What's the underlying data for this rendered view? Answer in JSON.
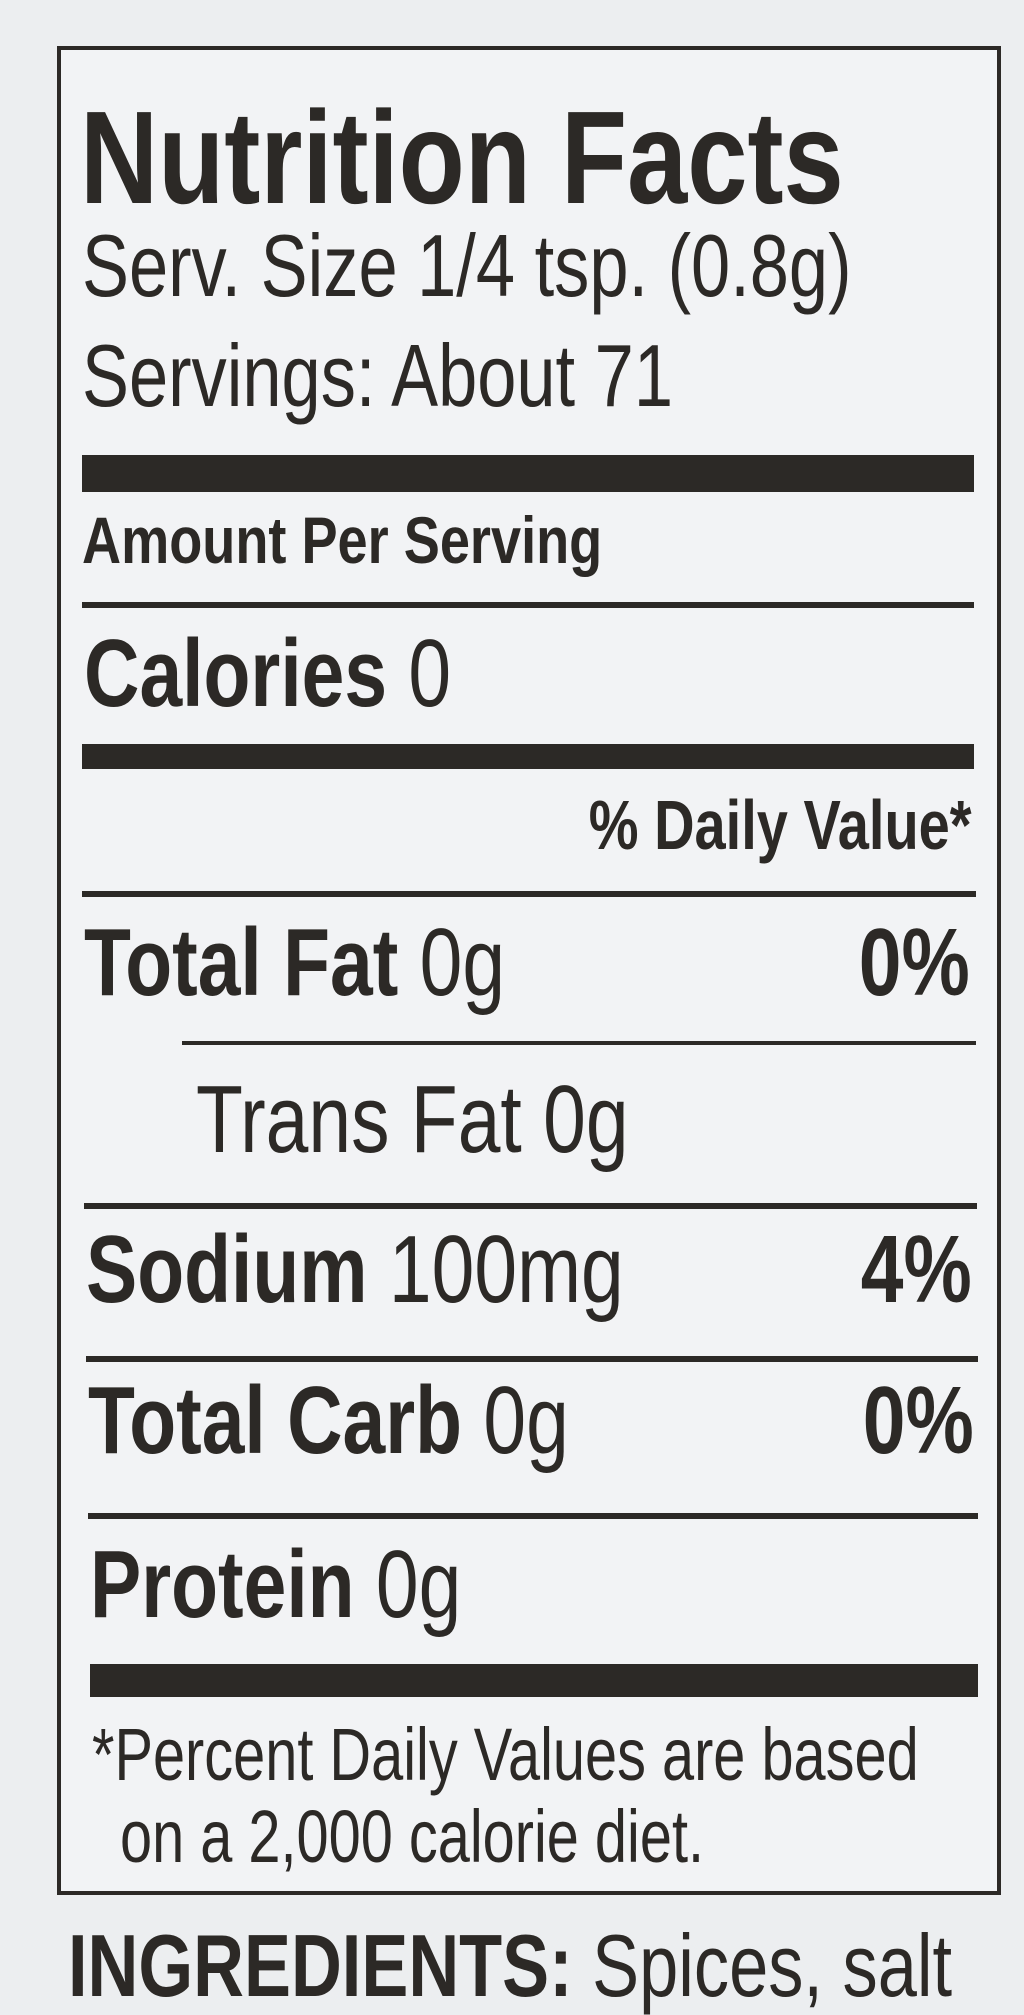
{
  "label": {
    "title": "Nutrition Facts",
    "serving_size": "Serv. Size 1/4 tsp. (0.8g)",
    "servings": "Servings: About 71",
    "amount_per_serving": "Amount Per Serving",
    "calories_label": "Calories",
    "calories_value": "0",
    "daily_value_header": "% Daily Value*",
    "rows": [
      {
        "name": "Total Fat",
        "amount": "0g",
        "dv": "0%"
      },
      {
        "name": "Trans Fat",
        "amount": "0g",
        "dv": ""
      },
      {
        "name": "Sodium",
        "amount": "100mg",
        "dv": "4%"
      },
      {
        "name": "Total Carb",
        "amount": "0g",
        "dv": "0%"
      },
      {
        "name": "Protein",
        "amount": "0g",
        "dv": ""
      }
    ],
    "footnote_line1": "*Percent Daily Values are based",
    "footnote_line2": "on a 2,000 calorie diet."
  },
  "ingredients": {
    "label": "INGREDIENTS:",
    "text": "Spices, salt"
  }
}
